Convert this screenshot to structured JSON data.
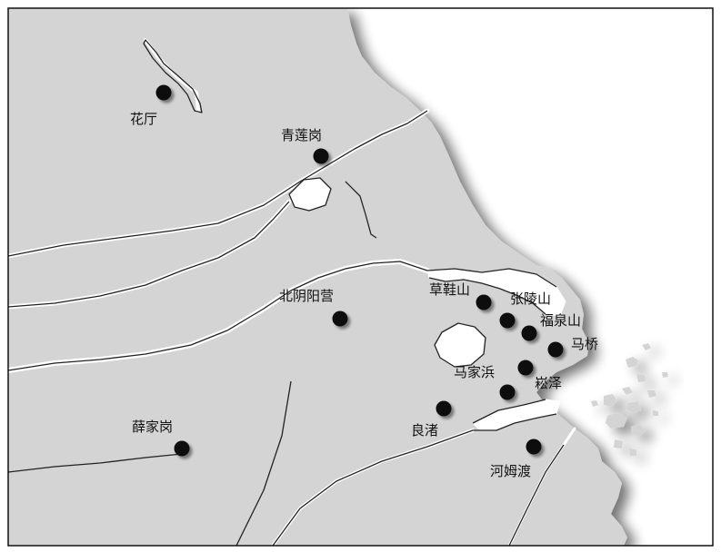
{
  "map": {
    "colors": {
      "land": "#d4d4d4",
      "sea": "#ffffff",
      "river": "#ffffff",
      "border": "#222222",
      "dot": "#0a0a0a",
      "label": "#111111"
    },
    "sites": [
      {
        "id": "huating",
        "name": "花厅"
      },
      {
        "id": "qingliangang",
        "name": "青莲岗"
      },
      {
        "id": "beiyinyangying",
        "name": "北阴阳营"
      },
      {
        "id": "xuejiagang",
        "name": "薛家岗"
      },
      {
        "id": "caoxieshan",
        "name": "草鞋山"
      },
      {
        "id": "zhanglingshan",
        "name": "张陵山"
      },
      {
        "id": "fuquanshan",
        "name": "福泉山"
      },
      {
        "id": "maqiao",
        "name": "马桥"
      },
      {
        "id": "majiabang",
        "name": "马家浜"
      },
      {
        "id": "songze",
        "name": "崧泽"
      },
      {
        "id": "liangzhu",
        "name": "良渚"
      },
      {
        "id": "hemudu",
        "name": "河姆渡"
      }
    ]
  }
}
